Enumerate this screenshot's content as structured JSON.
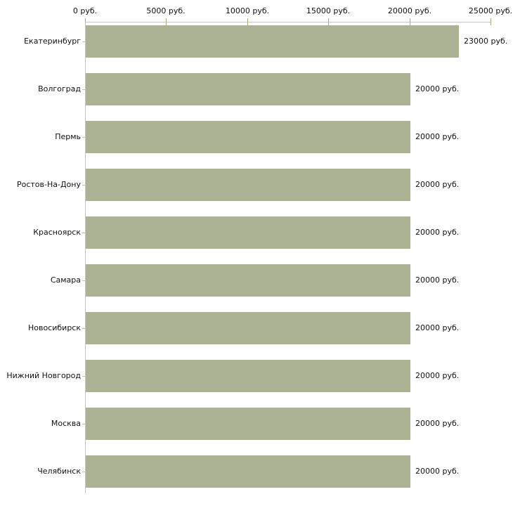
{
  "chart_data": {
    "type": "bar",
    "orientation": "horizontal",
    "title": "",
    "xlabel": "",
    "ylabel": "",
    "unit": "руб.",
    "categories": [
      "Екатеринбург",
      "Волгоград",
      "Пермь",
      "Ростов-На-Дону",
      "Красноярск",
      "Самара",
      "Новосибирск",
      "Нижний Новгород",
      "Москва",
      "Челябинск"
    ],
    "values": [
      23000,
      20000,
      20000,
      20000,
      20000,
      20000,
      20000,
      20000,
      20000,
      20000
    ],
    "value_labels": [
      "23000 руб.",
      "20000 руб.",
      "20000 руб.",
      "20000 руб.",
      "20000 руб.",
      "20000 руб.",
      "20000 руб.",
      "20000 руб.",
      "20000 руб.",
      "20000 руб."
    ],
    "x_axis": {
      "position": "top",
      "range": [
        0,
        25000
      ],
      "tick_values": [
        0,
        5000,
        10000,
        15000,
        20000,
        25000
      ],
      "tick_labels": [
        "0 руб.",
        "5000 руб.",
        "10000 руб.",
        "15000 руб.",
        "20000 руб.",
        "25000 руб."
      ]
    },
    "grid": false,
    "legend": false
  },
  "colors": {
    "bar_fill": "#acb294",
    "axis_line": "#c6c6c6",
    "x_tick_mark": "#abab78",
    "category_tick_mark": "#c2c2b4",
    "text": "#111111",
    "background": "#ffffff"
  }
}
